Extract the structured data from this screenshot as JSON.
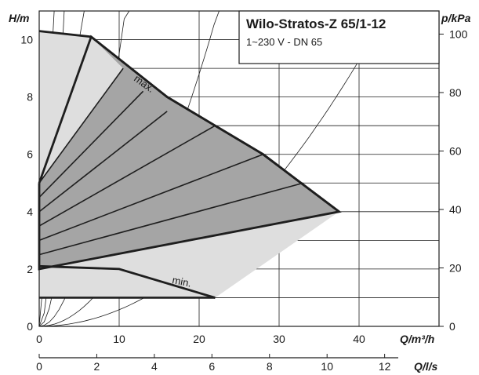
{
  "chart_data": {
    "type": "line",
    "title": "Wilo-Stratos-Z 65/1-12",
    "subtitle": "1~230 V - DN 65",
    "y_left": {
      "label": "H/m",
      "range": [
        0,
        11
      ],
      "ticks": [
        0,
        2,
        4,
        6,
        8,
        10
      ]
    },
    "y_right": {
      "label": "p/kPa",
      "ticks": [
        0,
        20,
        40,
        60,
        80,
        100
      ]
    },
    "x_bottom": {
      "label": "Q/m³/h",
      "range": [
        0,
        50
      ],
      "ticks": [
        0,
        10,
        20,
        30,
        40
      ]
    },
    "x_secondary": {
      "label": "Q/l/s",
      "ticks": [
        0,
        2,
        4,
        6,
        8,
        10,
        12
      ]
    },
    "grid": true,
    "colors": {
      "region_dark": "#a5a5a5",
      "region_light": "#dedede",
      "outline": "#1e1e1e"
    },
    "curve_labels": {
      "max": "max.",
      "min": "min."
    },
    "series": [
      {
        "name": "max.",
        "x": [
          0,
          6.5,
          16,
          22,
          28,
          37.5
        ],
        "y": [
          10.3,
          10.1,
          8,
          7,
          6,
          4
        ]
      },
      {
        "name": "min.",
        "x": [
          0,
          10,
          22
        ],
        "y": [
          2.1,
          2,
          1
        ]
      }
    ],
    "control_lines": [
      {
        "x": [
          0,
          10.5
        ],
        "y": [
          5,
          9
        ]
      },
      {
        "x": [
          0,
          13
        ],
        "y": [
          4.5,
          8.2
        ]
      },
      {
        "x": [
          0,
          16
        ],
        "y": [
          4,
          7.5
        ]
      },
      {
        "x": [
          0,
          22
        ],
        "y": [
          3.5,
          7
        ]
      },
      {
        "x": [
          0,
          28
        ],
        "y": [
          3,
          6
        ]
      },
      {
        "x": [
          0,
          33
        ],
        "y": [
          2.5,
          5
        ]
      },
      {
        "x": [
          0,
          37.5
        ],
        "y": [
          2,
          4
        ]
      }
    ],
    "system_curves": [
      {
        "k": 5.0
      },
      {
        "k": 1.2
      },
      {
        "k": 0.4
      },
      {
        "k": 0.095
      },
      {
        "k": 0.022
      },
      {
        "k": 0.0058
      }
    ]
  }
}
